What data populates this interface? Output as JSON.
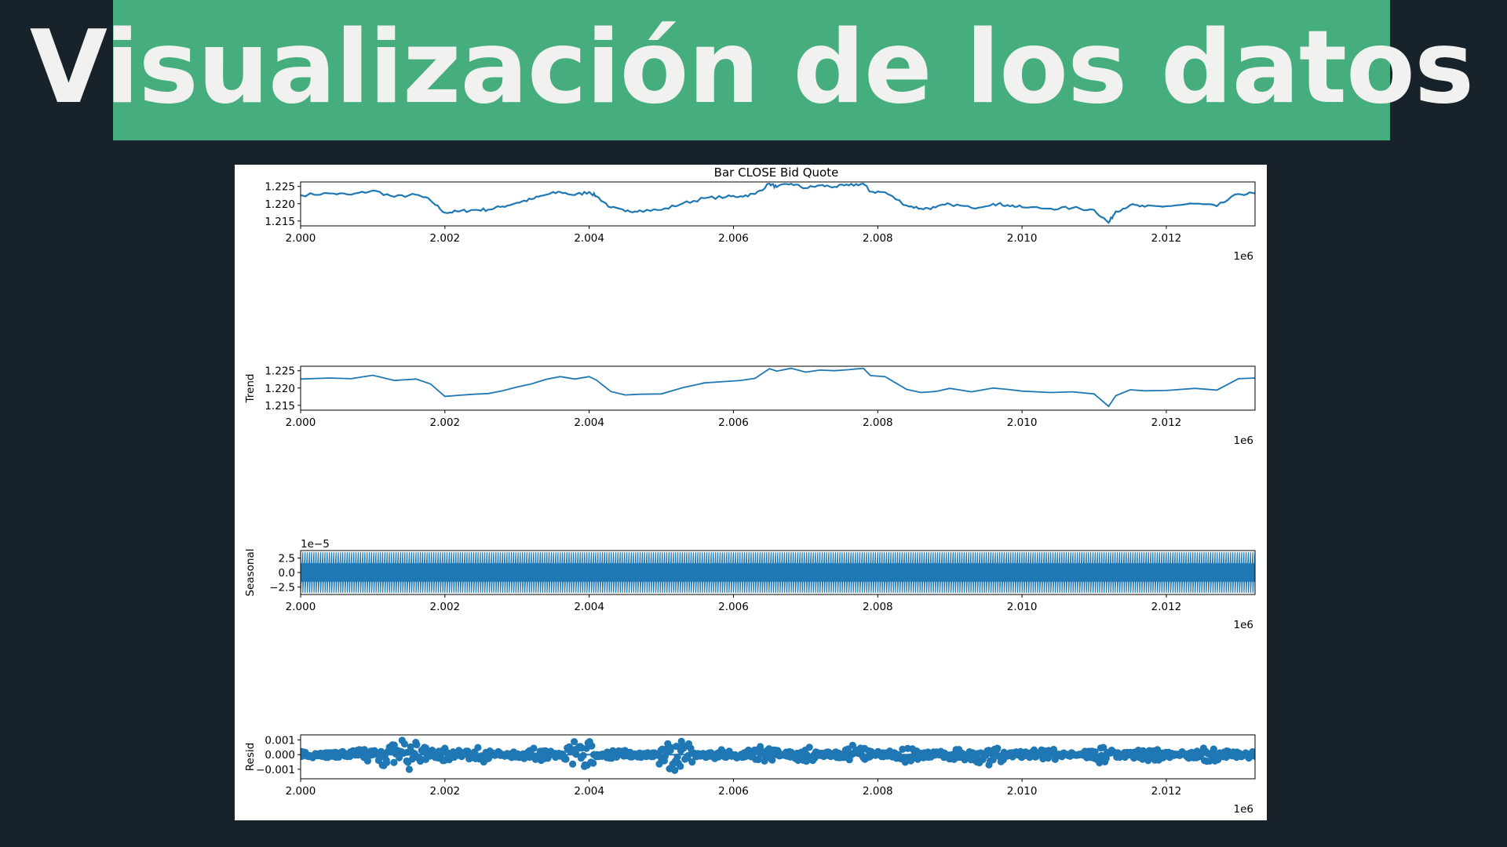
{
  "page": {
    "title": "Visualización de los datos"
  },
  "chart_data": {
    "type": "line",
    "title": "Bar CLOSE Bid Quote",
    "x_offset_label": "1e6",
    "x_ticks": [
      2.0,
      2.002,
      2.004,
      2.006,
      2.008,
      2.01,
      2.012
    ],
    "x_tick_labels": [
      "2.000",
      "2.002",
      "2.004",
      "2.006",
      "2.008",
      "2.010",
      "2.012"
    ],
    "xlim": [
      2.0,
      2.01323
    ],
    "colors": {
      "series": "#1f77b4",
      "axes": "#000000"
    },
    "panels": [
      {
        "key": "observed",
        "ylabel": "",
        "offset_label": "",
        "style": "line",
        "ylim": [
          1.2136,
          1.2263
        ],
        "y_ticks": [
          1.215,
          1.22,
          1.225
        ],
        "y_tick_labels": [
          "1.215",
          "1.220",
          "1.225"
        ],
        "x": [
          2.0,
          2.0004,
          2.0007,
          2.001,
          2.0013,
          2.0016,
          2.0018,
          2.002,
          2.0022,
          2.0024,
          2.0026,
          2.0028,
          2.003,
          2.0032,
          2.0034,
          2.0036,
          2.0038,
          2.004,
          2.0041,
          2.0043,
          2.0045,
          2.0047,
          2.005,
          2.0053,
          2.0056,
          2.0059,
          2.0061,
          2.0063,
          2.0065,
          2.0066,
          2.0068,
          2.007,
          2.0072,
          2.0074,
          2.0076,
          2.0078,
          2.0079,
          2.0081,
          2.0084,
          2.0086,
          2.0088,
          2.009,
          2.0093,
          2.0096,
          2.0098,
          2.01,
          2.0104,
          2.0107,
          2.011,
          2.0112,
          2.0113,
          2.0115,
          2.0117,
          2.012,
          2.0124,
          2.0127,
          2.013,
          2.01323
        ],
        "y": [
          1.2225,
          1.223,
          1.2226,
          1.2238,
          1.222,
          1.2226,
          1.221,
          1.2174,
          1.2178,
          1.2182,
          1.2183,
          1.2192,
          1.2203,
          1.2213,
          1.2226,
          1.2234,
          1.2225,
          1.2234,
          1.2222,
          1.2189,
          1.2178,
          1.2181,
          1.2182,
          1.2201,
          1.2216,
          1.222,
          1.2222,
          1.2228,
          1.2258,
          1.2248,
          1.2258,
          1.2245,
          1.2253,
          1.2249,
          1.2253,
          1.2258,
          1.2235,
          1.2233,
          1.2195,
          1.2186,
          1.2189,
          1.2199,
          1.2188,
          1.22,
          1.2196,
          1.219,
          1.2186,
          1.2188,
          1.2182,
          1.2145,
          1.2178,
          1.2196,
          1.2191,
          1.2193,
          1.22,
          1.2193,
          1.2228,
          1.223
        ]
      },
      {
        "key": "trend",
        "ylabel": "Trend",
        "offset_label": "",
        "style": "line",
        "ylim": [
          1.2136,
          1.2263
        ],
        "y_ticks": [
          1.215,
          1.22,
          1.225
        ],
        "y_tick_labels": [
          "1.215",
          "1.220",
          "1.225"
        ],
        "x": [
          2.0,
          2.0004,
          2.0007,
          2.001,
          2.0013,
          2.0016,
          2.0018,
          2.002,
          2.0022,
          2.0024,
          2.0026,
          2.0028,
          2.003,
          2.0032,
          2.0034,
          2.0036,
          2.0038,
          2.004,
          2.0041,
          2.0043,
          2.0045,
          2.0047,
          2.005,
          2.0053,
          2.0056,
          2.0059,
          2.0061,
          2.0063,
          2.0065,
          2.0066,
          2.0068,
          2.007,
          2.0072,
          2.0074,
          2.0076,
          2.0078,
          2.0079,
          2.0081,
          2.0084,
          2.0086,
          2.0088,
          2.009,
          2.0093,
          2.0096,
          2.0098,
          2.01,
          2.0104,
          2.0107,
          2.011,
          2.0112,
          2.0113,
          2.0115,
          2.0117,
          2.012,
          2.0124,
          2.0127,
          2.013,
          2.01323
        ],
        "y": [
          1.2226,
          1.2229,
          1.2227,
          1.2237,
          1.2222,
          1.2226,
          1.2212,
          1.2176,
          1.2179,
          1.2182,
          1.2184,
          1.2192,
          1.2203,
          1.2212,
          1.2225,
          1.2233,
          1.2226,
          1.2233,
          1.2223,
          1.219,
          1.218,
          1.2182,
          1.2183,
          1.2201,
          1.2215,
          1.2219,
          1.2222,
          1.2228,
          1.2256,
          1.2249,
          1.2257,
          1.2246,
          1.2252,
          1.225,
          1.2253,
          1.2257,
          1.2236,
          1.2233,
          1.2196,
          1.2187,
          1.219,
          1.2199,
          1.2189,
          1.22,
          1.2196,
          1.2191,
          1.2187,
          1.2189,
          1.2183,
          1.2147,
          1.2178,
          1.2195,
          1.2192,
          1.2193,
          1.2199,
          1.2194,
          1.2227,
          1.2229
        ]
      },
      {
        "key": "seasonal",
        "ylabel": "Seasonal",
        "offset_label": "1e−5",
        "style": "oscillation",
        "ylim": [
          -3.8,
          3.8
        ],
        "amplitude": 3.5,
        "cycles": 430,
        "y_ticks": [
          -2.5,
          0.0,
          2.5
        ],
        "y_tick_labels": [
          "−2.5",
          "0.0",
          "2.5"
        ]
      },
      {
        "key": "resid",
        "ylabel": "Resid",
        "offset_label": "",
        "style": "scatter",
        "ylim": [
          -0.00165,
          0.00135
        ],
        "y_ticks": [
          -0.001,
          0.0,
          0.001
        ],
        "y_tick_labels": [
          "−0.001",
          "0.000",
          "0.001"
        ],
        "base_spread": 0.00025,
        "bursts": [
          {
            "x": 2.0009,
            "amp": 0.0006
          },
          {
            "x": 2.0012,
            "amp": 0.00125
          },
          {
            "x": 2.0015,
            "amp": 0.0014
          },
          {
            "x": 2.002,
            "amp": 0.0006
          },
          {
            "x": 2.0025,
            "amp": 0.0006
          },
          {
            "x": 2.0033,
            "amp": 0.0006
          },
          {
            "x": 2.0039,
            "amp": 0.00135
          },
          {
            "x": 2.0044,
            "amp": 0.00045
          },
          {
            "x": 2.0052,
            "amp": 0.00145
          },
          {
            "x": 2.0058,
            "amp": 0.0004
          },
          {
            "x": 2.0064,
            "amp": 0.0009
          },
          {
            "x": 2.007,
            "amp": 0.0006
          },
          {
            "x": 2.0077,
            "amp": 0.0008
          },
          {
            "x": 2.0084,
            "amp": 0.0007
          },
          {
            "x": 2.0091,
            "amp": 0.0006
          },
          {
            "x": 2.0095,
            "amp": 0.0011
          },
          {
            "x": 2.0103,
            "amp": 0.0006
          },
          {
            "x": 2.0111,
            "amp": 0.00075
          },
          {
            "x": 2.0118,
            "amp": 0.0006
          },
          {
            "x": 2.0126,
            "amp": 0.00065
          }
        ]
      }
    ]
  }
}
